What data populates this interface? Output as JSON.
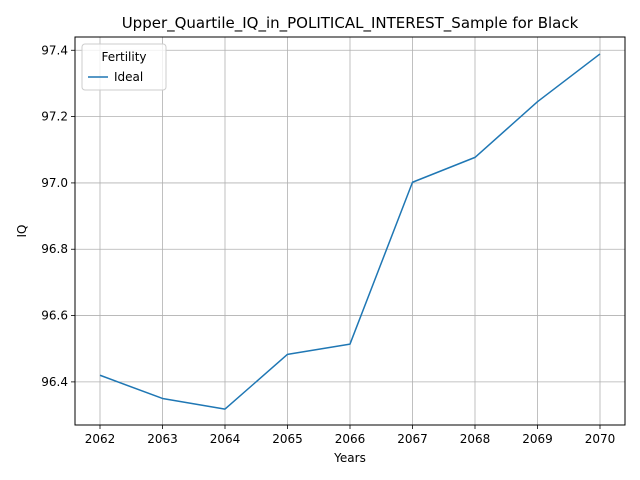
{
  "chart_data": {
    "type": "line",
    "title": "Upper_Quartile_IQ_in_POLITICAL_INTEREST_Sample for Black",
    "xlabel": "Years",
    "ylabel": "IQ",
    "x": [
      2062,
      2063,
      2064,
      2065,
      2066,
      2067,
      2068,
      2069,
      2070
    ],
    "x_tick_labels": [
      "2062",
      "2063",
      "2064",
      "2065",
      "2066",
      "2067",
      "2068",
      "2069",
      "2070"
    ],
    "y_ticks": [
      96.4,
      96.6,
      96.8,
      97.0,
      97.2,
      97.4
    ],
    "y_tick_labels": [
      "96.4",
      "96.6",
      "96.8",
      "97.0",
      "97.2",
      "97.4"
    ],
    "xlim": [
      2061.6,
      2070.4
    ],
    "ylim": [
      96.27,
      97.44
    ],
    "grid": true,
    "legend": {
      "title": "Fertility",
      "placement": "top-left"
    },
    "series": [
      {
        "name": "Ideal",
        "color": "#1f77b4",
        "values": [
          96.42,
          96.35,
          96.318,
          96.483,
          96.514,
          97.002,
          97.077,
          97.245,
          97.389
        ]
      }
    ]
  }
}
